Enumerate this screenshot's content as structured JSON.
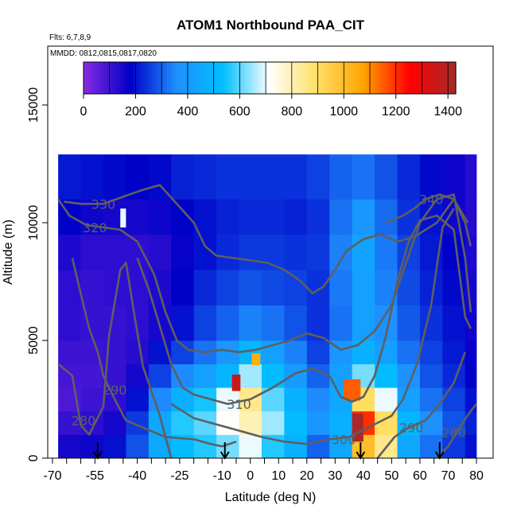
{
  "chart_data": {
    "type": "heatmap",
    "title": "ATOM1 Northbound PAA_CIT",
    "subtitle_flights": "Flts: 6,7,8,9",
    "subtitle_dates": "MMDD: 0812,0815,0817,0820",
    "xlabel": "Latitude (deg N)",
    "ylabel": "Altitude (m)",
    "xlim": [
      -70,
      80
    ],
    "ylim": [
      0,
      17500
    ],
    "x_ticks": [
      -70,
      -55,
      -40,
      -25,
      -10,
      0,
      10,
      20,
      30,
      40,
      50,
      60,
      70,
      80
    ],
    "x_tick_labels": [
      "-70",
      "-55",
      "-40",
      "-25",
      "-10",
      "0",
      "10",
      "20",
      "30",
      "40",
      "50",
      "60",
      "70",
      "80"
    ],
    "x_minor_step": 5,
    "y_ticks": [
      0,
      5000,
      10000,
      15000
    ],
    "y_tick_labels": [
      "0",
      "5000",
      "10000",
      "15000"
    ],
    "colorbar": {
      "min": 0,
      "max": 1430,
      "ticks": [
        0,
        200,
        400,
        600,
        800,
        1000,
        1200,
        1400
      ],
      "tick_labels": [
        "0",
        "200",
        "400",
        "600",
        "800",
        "1000",
        "1200",
        "1400"
      ],
      "colors": [
        "#8a2be2",
        "#0000c8",
        "#1e90ff",
        "#00bfff",
        "#ffffff",
        "#ffe066",
        "#ffa500",
        "#ff0000",
        "#a52a2a"
      ]
    },
    "field": {
      "lat_edges": [
        -68,
        -60,
        -52,
        -44,
        -36,
        -28,
        -20,
        -12,
        -4,
        4,
        12,
        20,
        28,
        36,
        44,
        52,
        60,
        68,
        76,
        80
      ],
      "alt_edges": [
        0,
        1000,
        2000,
        3000,
        4000,
        5000,
        6500,
        8000,
        9500,
        11000,
        12900
      ],
      "values": [
        [
          150,
          160,
          200,
          280,
          450,
          520,
          560,
          620,
          700,
          560,
          480,
          300,
          450,
          1000,
          850,
          450,
          320,
          250,
          200
        ],
        [
          110,
          120,
          150,
          250,
          450,
          560,
          600,
          720,
          800,
          650,
          520,
          380,
          480,
          1200,
          900,
          500,
          360,
          280,
          220
        ],
        [
          80,
          100,
          120,
          200,
          350,
          480,
          550,
          700,
          850,
          600,
          480,
          350,
          450,
          900,
          700,
          420,
          320,
          260,
          200
        ],
        [
          90,
          90,
          110,
          150,
          260,
          350,
          420,
          500,
          650,
          520,
          400,
          300,
          420,
          620,
          520,
          360,
          280,
          230,
          180
        ],
        [
          100,
          100,
          110,
          130,
          200,
          260,
          320,
          380,
          500,
          420,
          340,
          260,
          380,
          480,
          420,
          320,
          260,
          210,
          170
        ],
        [
          120,
          110,
          110,
          120,
          150,
          200,
          260,
          300,
          340,
          320,
          280,
          240,
          320,
          420,
          360,
          290,
          240,
          200,
          160
        ],
        [
          120,
          110,
          120,
          120,
          140,
          180,
          230,
          260,
          280,
          270,
          260,
          240,
          330,
          420,
          340,
          270,
          220,
          190,
          150
        ],
        [
          140,
          120,
          120,
          120,
          130,
          170,
          200,
          230,
          250,
          250,
          240,
          250,
          340,
          430,
          330,
          260,
          210,
          180,
          140
        ],
        [
          180,
          160,
          150,
          150,
          160,
          180,
          200,
          220,
          230,
          230,
          220,
          240,
          320,
          380,
          310,
          240,
          200,
          160,
          130
        ],
        [
          210,
          200,
          190,
          180,
          190,
          220,
          230,
          240,
          240,
          240,
          240,
          260,
          300,
          320,
          280,
          230,
          190,
          160,
          130
        ]
      ],
      "hotspots": [
        {
          "lat": 38,
          "alt": 1300,
          "value": 1420,
          "w": 4,
          "h": 1200
        },
        {
          "lat": 36,
          "alt": 2900,
          "value": 1150,
          "w": 6,
          "h": 900
        },
        {
          "lat": -5,
          "alt": 3200,
          "value": 1350,
          "w": 3,
          "h": 700
        },
        {
          "lat": 2,
          "alt": 4200,
          "value": 1050,
          "w": 3,
          "h": 500
        },
        {
          "lat": -45,
          "alt": 10200,
          "value": 700,
          "w": 2,
          "h": 800
        }
      ]
    },
    "contours": [
      {
        "label": "280",
        "label_at": [
          -59,
          1600
        ],
        "points": [
          [
            -68,
            4000
          ],
          [
            -63,
            3500
          ],
          [
            -60,
            1400
          ],
          [
            -57,
            1000
          ],
          [
            -52,
            2200
          ],
          [
            -50,
            5200
          ],
          [
            -46,
            8000
          ],
          [
            -44,
            8300
          ],
          [
            -42,
            6800
          ],
          [
            -38,
            3900
          ],
          [
            -32,
            1800
          ],
          [
            -28,
            0
          ]
        ]
      },
      {
        "label": "290",
        "label_at": [
          -48,
          2900
        ],
        "points": [
          [
            -63,
            8500
          ],
          [
            -60,
            7000
          ],
          [
            -57,
            5500
          ],
          [
            -54,
            4500
          ],
          [
            -52,
            3500
          ],
          [
            -48,
            2500
          ],
          [
            -44,
            1600
          ],
          [
            -36,
            1200
          ],
          [
            -30,
            900
          ],
          [
            -20,
            800
          ],
          [
            -14,
            600
          ],
          [
            -10,
            500
          ],
          [
            -5,
            700
          ]
        ]
      },
      {
        "label": "290",
        "label_at": [
          57,
          1300
        ],
        "points": [
          [
            45,
            0
          ],
          [
            51,
            900
          ],
          [
            56,
            1300
          ],
          [
            62,
            1600
          ],
          [
            67,
            2300
          ],
          [
            72,
            3200
          ],
          [
            76,
            4500
          ]
        ]
      },
      {
        "label": "280",
        "label_at": [
          72,
          1100
        ],
        "points": [
          [
            66,
            0
          ],
          [
            70,
            500
          ],
          [
            74,
            1300
          ],
          [
            78,
            2000
          ],
          [
            80,
            2300
          ]
        ]
      },
      {
        "label": "300",
        "label_at": [
          33,
          800
        ],
        "points": [
          [
            -28,
            2300
          ],
          [
            -24,
            2000
          ],
          [
            -20,
            1700
          ],
          [
            -14,
            1500
          ],
          [
            -8,
            1300
          ],
          [
            -2,
            1100
          ],
          [
            4,
            900
          ],
          [
            12,
            700
          ],
          [
            20,
            600
          ],
          [
            28,
            800
          ],
          [
            35,
            900
          ],
          [
            40,
            1200
          ],
          [
            45,
            1500
          ],
          [
            50,
            1800
          ],
          [
            54,
            2500
          ],
          [
            59,
            4000
          ],
          [
            64,
            6500
          ],
          [
            68,
            9800
          ],
          [
            72,
            10600
          ]
        ]
      },
      {
        "label": "310",
        "label_at": [
          -4,
          2300
        ],
        "points": [
          [
            -40,
            8500
          ],
          [
            -36,
            7200
          ],
          [
            -32,
            5600
          ],
          [
            -28,
            4000
          ],
          [
            -24,
            3000
          ],
          [
            -20,
            2700
          ],
          [
            -14,
            2500
          ],
          [
            -8,
            2300
          ],
          [
            0,
            2500
          ],
          [
            8,
            3000
          ],
          [
            16,
            3600
          ],
          [
            22,
            3800
          ],
          [
            28,
            3500
          ],
          [
            32,
            2600
          ],
          [
            36,
            2400
          ],
          [
            40,
            2600
          ],
          [
            44,
            3500
          ],
          [
            48,
            5200
          ],
          [
            52,
            7500
          ],
          [
            56,
            9200
          ],
          [
            60,
            10100
          ],
          [
            66,
            10300
          ],
          [
            72,
            9700
          ],
          [
            76,
            6000
          ],
          [
            78,
            5500
          ]
        ]
      },
      {
        "label": "320",
        "label_at": [
          -55,
          9800
        ],
        "points": [
          [
            -68,
            11000
          ],
          [
            -64,
            10300
          ],
          [
            -58,
            9900
          ],
          [
            -52,
            9800
          ],
          [
            -46,
            9700
          ],
          [
            -40,
            9200
          ],
          [
            -34,
            7800
          ],
          [
            -30,
            6200
          ],
          [
            -26,
            5000
          ],
          [
            -22,
            4600
          ],
          [
            -16,
            4500
          ],
          [
            -10,
            4600
          ],
          [
            -4,
            4500
          ],
          [
            2,
            4600
          ],
          [
            8,
            4800
          ],
          [
            14,
            5000
          ],
          [
            20,
            5300
          ],
          [
            26,
            5100
          ],
          [
            32,
            4600
          ],
          [
            38,
            4800
          ],
          [
            44,
            5400
          ],
          [
            50,
            6500
          ],
          [
            56,
            8600
          ],
          [
            60,
            10000
          ],
          [
            66,
            11000
          ],
          [
            72,
            11200
          ],
          [
            76,
            8500
          ],
          [
            78,
            6200
          ]
        ]
      },
      {
        "label": "330",
        "label_at": [
          -52,
          10800
        ],
        "points": [
          [
            -66,
            10900
          ],
          [
            -60,
            10800
          ],
          [
            -52,
            10800
          ],
          [
            -45,
            11100
          ],
          [
            -38,
            11400
          ],
          [
            -32,
            11600
          ],
          [
            -26,
            10800
          ],
          [
            -20,
            10000
          ],
          [
            -16,
            9000
          ],
          [
            -12,
            8600
          ],
          [
            -6,
            8500
          ],
          [
            0,
            8400
          ],
          [
            6,
            8300
          ],
          [
            12,
            8000
          ],
          [
            18,
            7500
          ],
          [
            22,
            7000
          ],
          [
            26,
            7300
          ],
          [
            30,
            8000
          ],
          [
            34,
            8800
          ],
          [
            40,
            9300
          ],
          [
            46,
            9500
          ],
          [
            52,
            9200
          ],
          [
            58,
            9400
          ],
          [
            66,
            10000
          ],
          [
            72,
            11000
          ],
          [
            76,
            10000
          ],
          [
            78,
            9000
          ]
        ]
      },
      {
        "label": "340",
        "label_at": [
          64,
          11000
        ],
        "points": [
          [
            48,
            10000
          ],
          [
            54,
            10300
          ],
          [
            58,
            10600
          ],
          [
            62,
            11000
          ],
          [
            67,
            11200
          ],
          [
            72,
            11000
          ],
          [
            77,
            10000
          ]
        ]
      }
    ],
    "flight_markers": [
      -54,
      -9,
      39,
      67
    ]
  }
}
